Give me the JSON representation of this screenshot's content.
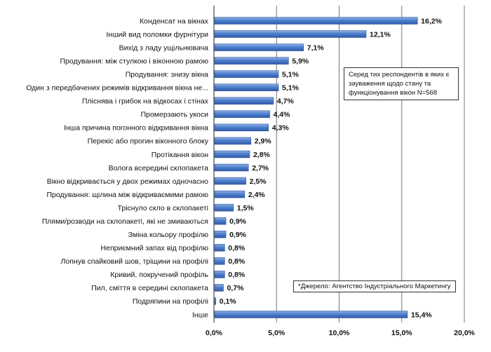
{
  "chart_data": {
    "type": "bar",
    "orientation": "horizontal",
    "categories": [
      "Конденсат на вікнах",
      "Інший вид поломки фурнітури",
      "Вихід з ладу ущільнювача",
      "Продування: між стулкою і віконною рамою",
      "Продування: знизу вікна",
      "Один з передбачених режимів відкривання вікна не...",
      "Пліснява і грибок на відкосах і стінах",
      "Промерзають укоси",
      "Інша причина погонного відкривання вікна",
      "Перекіс або прогин віконного блоку",
      "Протікання вікон",
      "Волога всередині склопакета",
      "Вікно відкривається у двох режимах одночасно",
      "Продування: щілина між відкриваємими рамою",
      "Тріснуло скло в склопакеті",
      "Плями/розводи на склопакеті, які не змиваються",
      "Зміна кольору профілю",
      "Неприємний запах від профілю",
      "Лопнув спайковий шов, тріщини на профілі",
      "Кривий, покручений профіль",
      "Пил, сміття в середині склопакета",
      "Подряпини на профілі",
      "Інше"
    ],
    "values": [
      16.2,
      12.1,
      7.1,
      5.9,
      5.1,
      5.1,
      4.7,
      4.4,
      4.3,
      2.9,
      2.8,
      2.7,
      2.5,
      2.4,
      1.5,
      0.9,
      0.9,
      0.8,
      0.8,
      0.8,
      0.7,
      0.1,
      15.4
    ],
    "value_labels": [
      "16,2%",
      "12,1%",
      "7,1%",
      "5,9%",
      "5,1%",
      "5,1%",
      "4,7%",
      "4,4%",
      "4,3%",
      "2,9%",
      "2,8%",
      "2,7%",
      "2,5%",
      "2,4%",
      "1,5%",
      "0,9%",
      "0,9%",
      "0,8%",
      "0,8%",
      "0,8%",
      "0,7%",
      "0,1%",
      "15,4%"
    ],
    "xlim": [
      0,
      20
    ],
    "xticks": [
      0,
      5,
      10,
      15,
      20
    ],
    "xtick_labels": [
      "0,0%",
      "5,0%",
      "10,0%",
      "15,0%",
      "20,0%"
    ],
    "grid": true,
    "annotations": {
      "sample": "Серед тих респондентів в яких є зауваження щодо стану та функціонування вікон N=568",
      "source": "*Джерело: Агентство Індустріального Маркетингу"
    }
  },
  "colors": {
    "bar": "#4472c4",
    "bar_edge": "#2f5597",
    "grid": "#777777"
  }
}
